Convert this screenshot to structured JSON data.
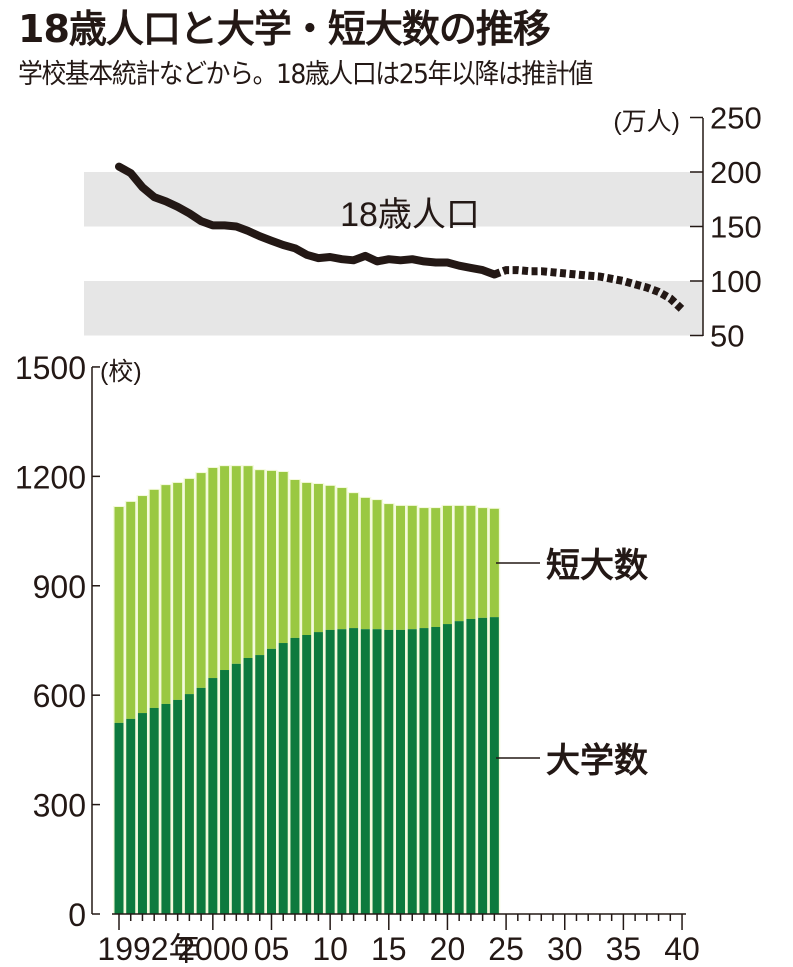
{
  "header": {
    "title": "18歳人口と大学・短大数の推移",
    "subtitle": "学校基本統計などから。18歳人口は25年以降は推計値"
  },
  "colors": {
    "university": "#0D7A3E",
    "junior_college": "#9AC842",
    "line": "#231815",
    "band": "#E6E6E6",
    "bar_gap": "#F4FADC"
  },
  "chart_data": [
    {
      "type": "line",
      "title": "18歳人口",
      "ylabel": "(万人)",
      "ylim": [
        50,
        250
      ],
      "yticks": [
        50,
        100,
        150,
        200,
        250
      ],
      "shaded_bands": [
        [
          50,
          100
        ],
        [
          150,
          200
        ]
      ],
      "series": [
        {
          "name": "18歳人口 (実績)",
          "style": "solid",
          "x": [
            1992,
            1993,
            1994,
            1995,
            1996,
            1997,
            1998,
            1999,
            2000,
            2001,
            2002,
            2003,
            2004,
            2005,
            2006,
            2007,
            2008,
            2009,
            2010,
            2011,
            2012,
            2013,
            2014,
            2015,
            2016,
            2017,
            2018,
            2019,
            2020,
            2021,
            2022,
            2023,
            2024
          ],
          "values": [
            205,
            199,
            186,
            177,
            173,
            168,
            162,
            155,
            151,
            151,
            150,
            146,
            141,
            137,
            133,
            130,
            124,
            121,
            122,
            120,
            119,
            123,
            118,
            120,
            119,
            120,
            118,
            117,
            117,
            114,
            112,
            110,
            106
          ]
        },
        {
          "name": "18歳人口 (推計)",
          "style": "dotted",
          "x": [
            2024,
            2025,
            2026,
            2027,
            2028,
            2029,
            2030,
            2031,
            2032,
            2033,
            2034,
            2035,
            2036,
            2037,
            2038,
            2039,
            2040
          ],
          "values": [
            106,
            110,
            110,
            109,
            109,
            108,
            107,
            106,
            105,
            104,
            102,
            100,
            97,
            94,
            90,
            84,
            74
          ]
        }
      ]
    },
    {
      "type": "bar",
      "stacked": true,
      "ylabel": "(校)",
      "ylim": [
        0,
        1500
      ],
      "yticks": [
        0,
        300,
        600,
        900,
        1200,
        1500
      ],
      "xlim": [
        1992,
        2040
      ],
      "xtick_labels": [
        "1992年",
        "2000",
        "05",
        "10",
        "15",
        "20",
        "25",
        "30",
        "35",
        "40"
      ],
      "xtick_years": [
        1992,
        2000,
        2005,
        2010,
        2015,
        2020,
        2025,
        2030,
        2035,
        2040
      ],
      "categories": [
        1992,
        1993,
        1994,
        1995,
        1996,
        1997,
        1998,
        1999,
        2000,
        2001,
        2002,
        2003,
        2004,
        2005,
        2006,
        2007,
        2008,
        2009,
        2010,
        2011,
        2012,
        2013,
        2014,
        2015,
        2016,
        2017,
        2018,
        2019,
        2020,
        2021,
        2022,
        2023,
        2024
      ],
      "series": [
        {
          "name": "大学数",
          "values": [
            524,
            535,
            551,
            565,
            576,
            587,
            603,
            620,
            647,
            669,
            686,
            702,
            710,
            727,
            743,
            757,
            765,
            773,
            779,
            781,
            784,
            781,
            781,
            779,
            779,
            781,
            784,
            787,
            795,
            803,
            809,
            812,
            814
          ]
        },
        {
          "name": "短大数",
          "values": [
            592,
            595,
            595,
            598,
            600,
            595,
            590,
            589,
            576,
            559,
            542,
            526,
            507,
            488,
            469,
            433,
            417,
            406,
            395,
            387,
            370,
            360,
            354,
            345,
            340,
            338,
            329,
            326,
            324,
            316,
            310,
            301,
            297
          ]
        }
      ],
      "totals": [
        1116,
        1130,
        1146,
        1163,
        1176,
        1182,
        1193,
        1209,
        1223,
        1228,
        1228,
        1228,
        1217,
        1215,
        1212,
        1190,
        1182,
        1179,
        1174,
        1168,
        1154,
        1141,
        1135,
        1124,
        1119,
        1119,
        1113,
        1113,
        1119,
        1119,
        1119,
        1113,
        1111
      ]
    }
  ],
  "line_chart": {
    "label": "18歳人口",
    "unit": "(万人)",
    "tick_labels": [
      "250",
      "200",
      "150",
      "100",
      "50"
    ]
  },
  "bar_chart": {
    "unit": "(校)",
    "tick_labels": [
      "1500",
      "1200",
      "900",
      "600",
      "300",
      "0"
    ],
    "legend": {
      "junior_college": "短大数",
      "university": "大学数"
    },
    "x_labels": [
      "1992年",
      "2000",
      "05",
      "10",
      "15",
      "20",
      "25",
      "30",
      "35",
      "40"
    ]
  }
}
